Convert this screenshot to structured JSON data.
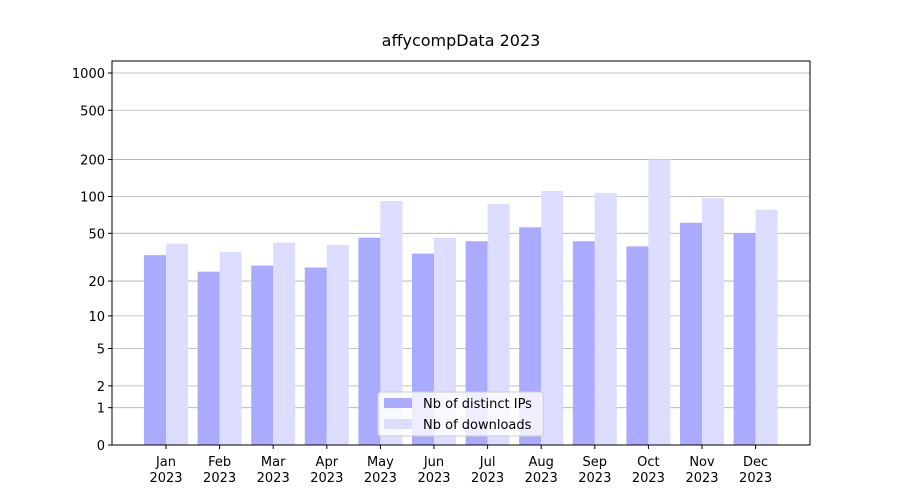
{
  "chart_data": {
    "type": "bar",
    "title": "affycompData 2023",
    "categories": [
      "Jan 2023",
      "Feb 2023",
      "Mar 2023",
      "Apr 2023",
      "May 2023",
      "Jun 2023",
      "Jul 2023",
      "Aug 2023",
      "Sep 2023",
      "Oct 2023",
      "Nov 2023",
      "Dec 2023"
    ],
    "series": [
      {
        "name": "Nb of distinct IPs",
        "color": "#aaaaff",
        "values": [
          33,
          24,
          27,
          26,
          46,
          34,
          43,
          56,
          43,
          39,
          61,
          50
        ]
      },
      {
        "name": "Nb of downloads",
        "color": "#ddddff",
        "values": [
          41,
          35,
          42,
          40,
          92,
          46,
          87,
          111,
          107,
          200,
          97,
          78
        ]
      }
    ],
    "yscale": "log1p",
    "ylim": [
      0,
      1250
    ],
    "yticks": [
      0,
      1,
      2,
      5,
      10,
      20,
      50,
      100,
      200,
      500,
      1000
    ],
    "grid": true,
    "legend": "lower center"
  }
}
